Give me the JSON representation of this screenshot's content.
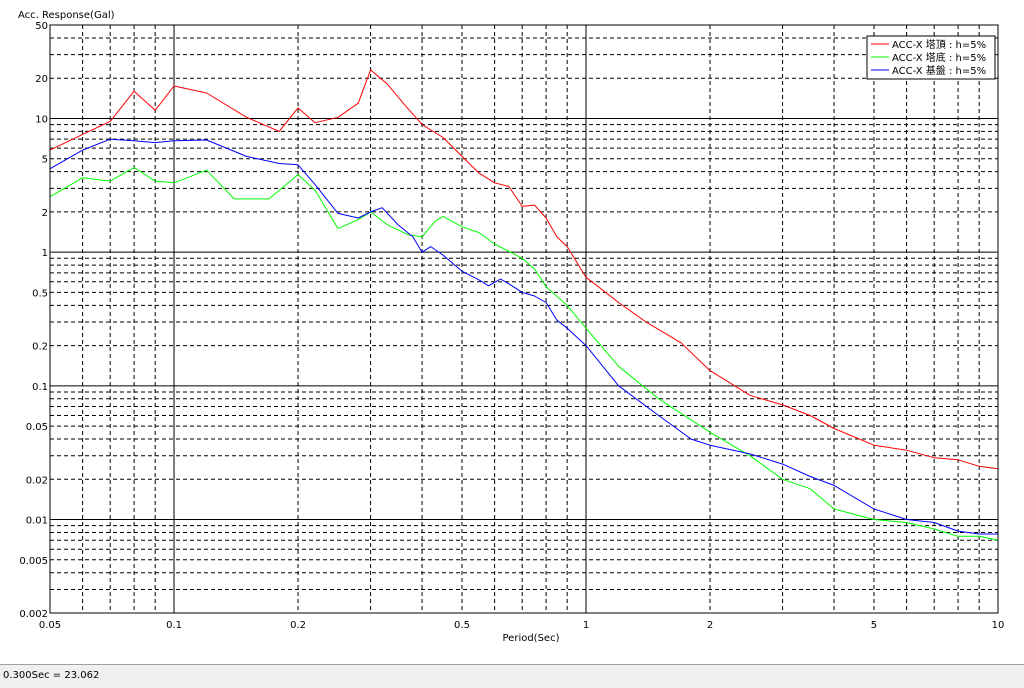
{
  "status": {
    "readout": "0.300Sec = 23.062"
  },
  "chart_data": {
    "type": "line",
    "xlabel": "Period(Sec)",
    "ylabel": "Acc. Response(Gal)",
    "xscale": "log",
    "yscale": "log",
    "xlim": [
      0.05,
      10
    ],
    "ylim": [
      0.002,
      50
    ],
    "x_ticks": [
      0.05,
      0.1,
      0.2,
      0.5,
      1,
      2,
      5,
      10
    ],
    "x_tick_labels": [
      "0.05",
      "0.1",
      "0.2",
      "0.5",
      "1",
      "2",
      "5",
      "10"
    ],
    "y_ticks": [
      0.002,
      0.005,
      0.01,
      0.02,
      0.05,
      0.1,
      0.2,
      0.5,
      1,
      2,
      5,
      10,
      20,
      50
    ],
    "y_tick_labels": [
      "0.002",
      "0.005",
      "0.01",
      "0.02",
      "0.05",
      "0.1",
      "0.2",
      "0.5",
      "1",
      "2",
      "5",
      "10",
      "20",
      "50"
    ],
    "grid": true,
    "legend_position": "top-right",
    "series": [
      {
        "name": "ACC-X 塔頂 : h=5%",
        "color": "#ff0000",
        "points": [
          [
            0.05,
            5.8
          ],
          [
            0.06,
            7.6
          ],
          [
            0.07,
            9.5
          ],
          [
            0.08,
            16
          ],
          [
            0.09,
            11.5
          ],
          [
            0.1,
            17.5
          ],
          [
            0.12,
            15.5
          ],
          [
            0.15,
            10.2
          ],
          [
            0.18,
            8
          ],
          [
            0.2,
            12
          ],
          [
            0.22,
            9.3
          ],
          [
            0.25,
            10.2
          ],
          [
            0.28,
            13
          ],
          [
            0.3,
            23.062
          ],
          [
            0.33,
            18
          ],
          [
            0.36,
            13
          ],
          [
            0.4,
            9
          ],
          [
            0.45,
            7.2
          ],
          [
            0.5,
            5.2
          ],
          [
            0.55,
            3.9
          ],
          [
            0.6,
            3.3
          ],
          [
            0.65,
            3.1
          ],
          [
            0.7,
            2.2
          ],
          [
            0.75,
            2.25
          ],
          [
            0.8,
            1.8
          ],
          [
            0.85,
            1.3
          ],
          [
            0.9,
            1.1
          ],
          [
            1,
            0.65
          ],
          [
            1.2,
            0.42
          ],
          [
            1.4,
            0.3
          ],
          [
            1.7,
            0.21
          ],
          [
            2,
            0.13
          ],
          [
            2.5,
            0.085
          ],
          [
            3,
            0.072
          ],
          [
            3.5,
            0.06
          ],
          [
            4,
            0.048
          ],
          [
            5,
            0.036
          ],
          [
            6,
            0.033
          ],
          [
            7,
            0.029
          ],
          [
            8,
            0.028
          ],
          [
            9,
            0.025
          ],
          [
            10,
            0.024
          ]
        ]
      },
      {
        "name": "ACC-X 塔底 : h=5%",
        "color": "#00ff00",
        "points": [
          [
            0.05,
            2.6
          ],
          [
            0.06,
            3.6
          ],
          [
            0.07,
            3.4
          ],
          [
            0.08,
            4.3
          ],
          [
            0.09,
            3.4
          ],
          [
            0.1,
            3.3
          ],
          [
            0.12,
            4.1
          ],
          [
            0.14,
            2.5
          ],
          [
            0.17,
            2.5
          ],
          [
            0.2,
            3.8
          ],
          [
            0.22,
            2.9
          ],
          [
            0.25,
            1.5
          ],
          [
            0.28,
            1.75
          ],
          [
            0.3,
            2.0
          ],
          [
            0.33,
            1.6
          ],
          [
            0.37,
            1.35
          ],
          [
            0.4,
            1.3
          ],
          [
            0.43,
            1.7
          ],
          [
            0.45,
            1.85
          ],
          [
            0.5,
            1.55
          ],
          [
            0.55,
            1.4
          ],
          [
            0.6,
            1.15
          ],
          [
            0.7,
            0.9
          ],
          [
            0.75,
            0.75
          ],
          [
            0.8,
            0.55
          ],
          [
            0.9,
            0.4
          ],
          [
            1,
            0.27
          ],
          [
            1.2,
            0.14
          ],
          [
            1.5,
            0.08
          ],
          [
            2,
            0.045
          ],
          [
            2.5,
            0.03
          ],
          [
            3,
            0.02
          ],
          [
            3.5,
            0.017
          ],
          [
            4,
            0.012
          ],
          [
            5,
            0.01
          ],
          [
            6,
            0.0095
          ],
          [
            7,
            0.0085
          ],
          [
            8,
            0.0075
          ],
          [
            9,
            0.0075
          ],
          [
            10,
            0.007
          ]
        ]
      },
      {
        "name": "ACC-X 基盤 : h=5%",
        "color": "#0000ff",
        "points": [
          [
            0.05,
            4.2
          ],
          [
            0.06,
            5.8
          ],
          [
            0.07,
            7
          ],
          [
            0.08,
            6.8
          ],
          [
            0.09,
            6.6
          ],
          [
            0.1,
            6.8
          ],
          [
            0.12,
            6.9
          ],
          [
            0.15,
            5.2
          ],
          [
            0.18,
            4.6
          ],
          [
            0.2,
            4.5
          ],
          [
            0.22,
            3.2
          ],
          [
            0.25,
            1.95
          ],
          [
            0.28,
            1.8
          ],
          [
            0.3,
            2.0
          ],
          [
            0.32,
            2.15
          ],
          [
            0.35,
            1.6
          ],
          [
            0.38,
            1.3
          ],
          [
            0.4,
            1.0
          ],
          [
            0.42,
            1.1
          ],
          [
            0.45,
            0.95
          ],
          [
            0.5,
            0.72
          ],
          [
            0.55,
            0.62
          ],
          [
            0.58,
            0.56
          ],
          [
            0.62,
            0.63
          ],
          [
            0.65,
            0.58
          ],
          [
            0.7,
            0.5
          ],
          [
            0.75,
            0.47
          ],
          [
            0.8,
            0.42
          ],
          [
            0.85,
            0.31
          ],
          [
            0.9,
            0.27
          ],
          [
            1,
            0.2
          ],
          [
            1.2,
            0.1
          ],
          [
            1.5,
            0.06
          ],
          [
            1.8,
            0.04
          ],
          [
            2,
            0.036
          ],
          [
            2.5,
            0.031
          ],
          [
            3,
            0.026
          ],
          [
            3.5,
            0.021
          ],
          [
            4,
            0.018
          ],
          [
            5,
            0.012
          ],
          [
            6,
            0.01
          ],
          [
            7,
            0.0095
          ],
          [
            8,
            0.0082
          ],
          [
            9,
            0.0078
          ],
          [
            10,
            0.0078
          ]
        ]
      }
    ]
  }
}
